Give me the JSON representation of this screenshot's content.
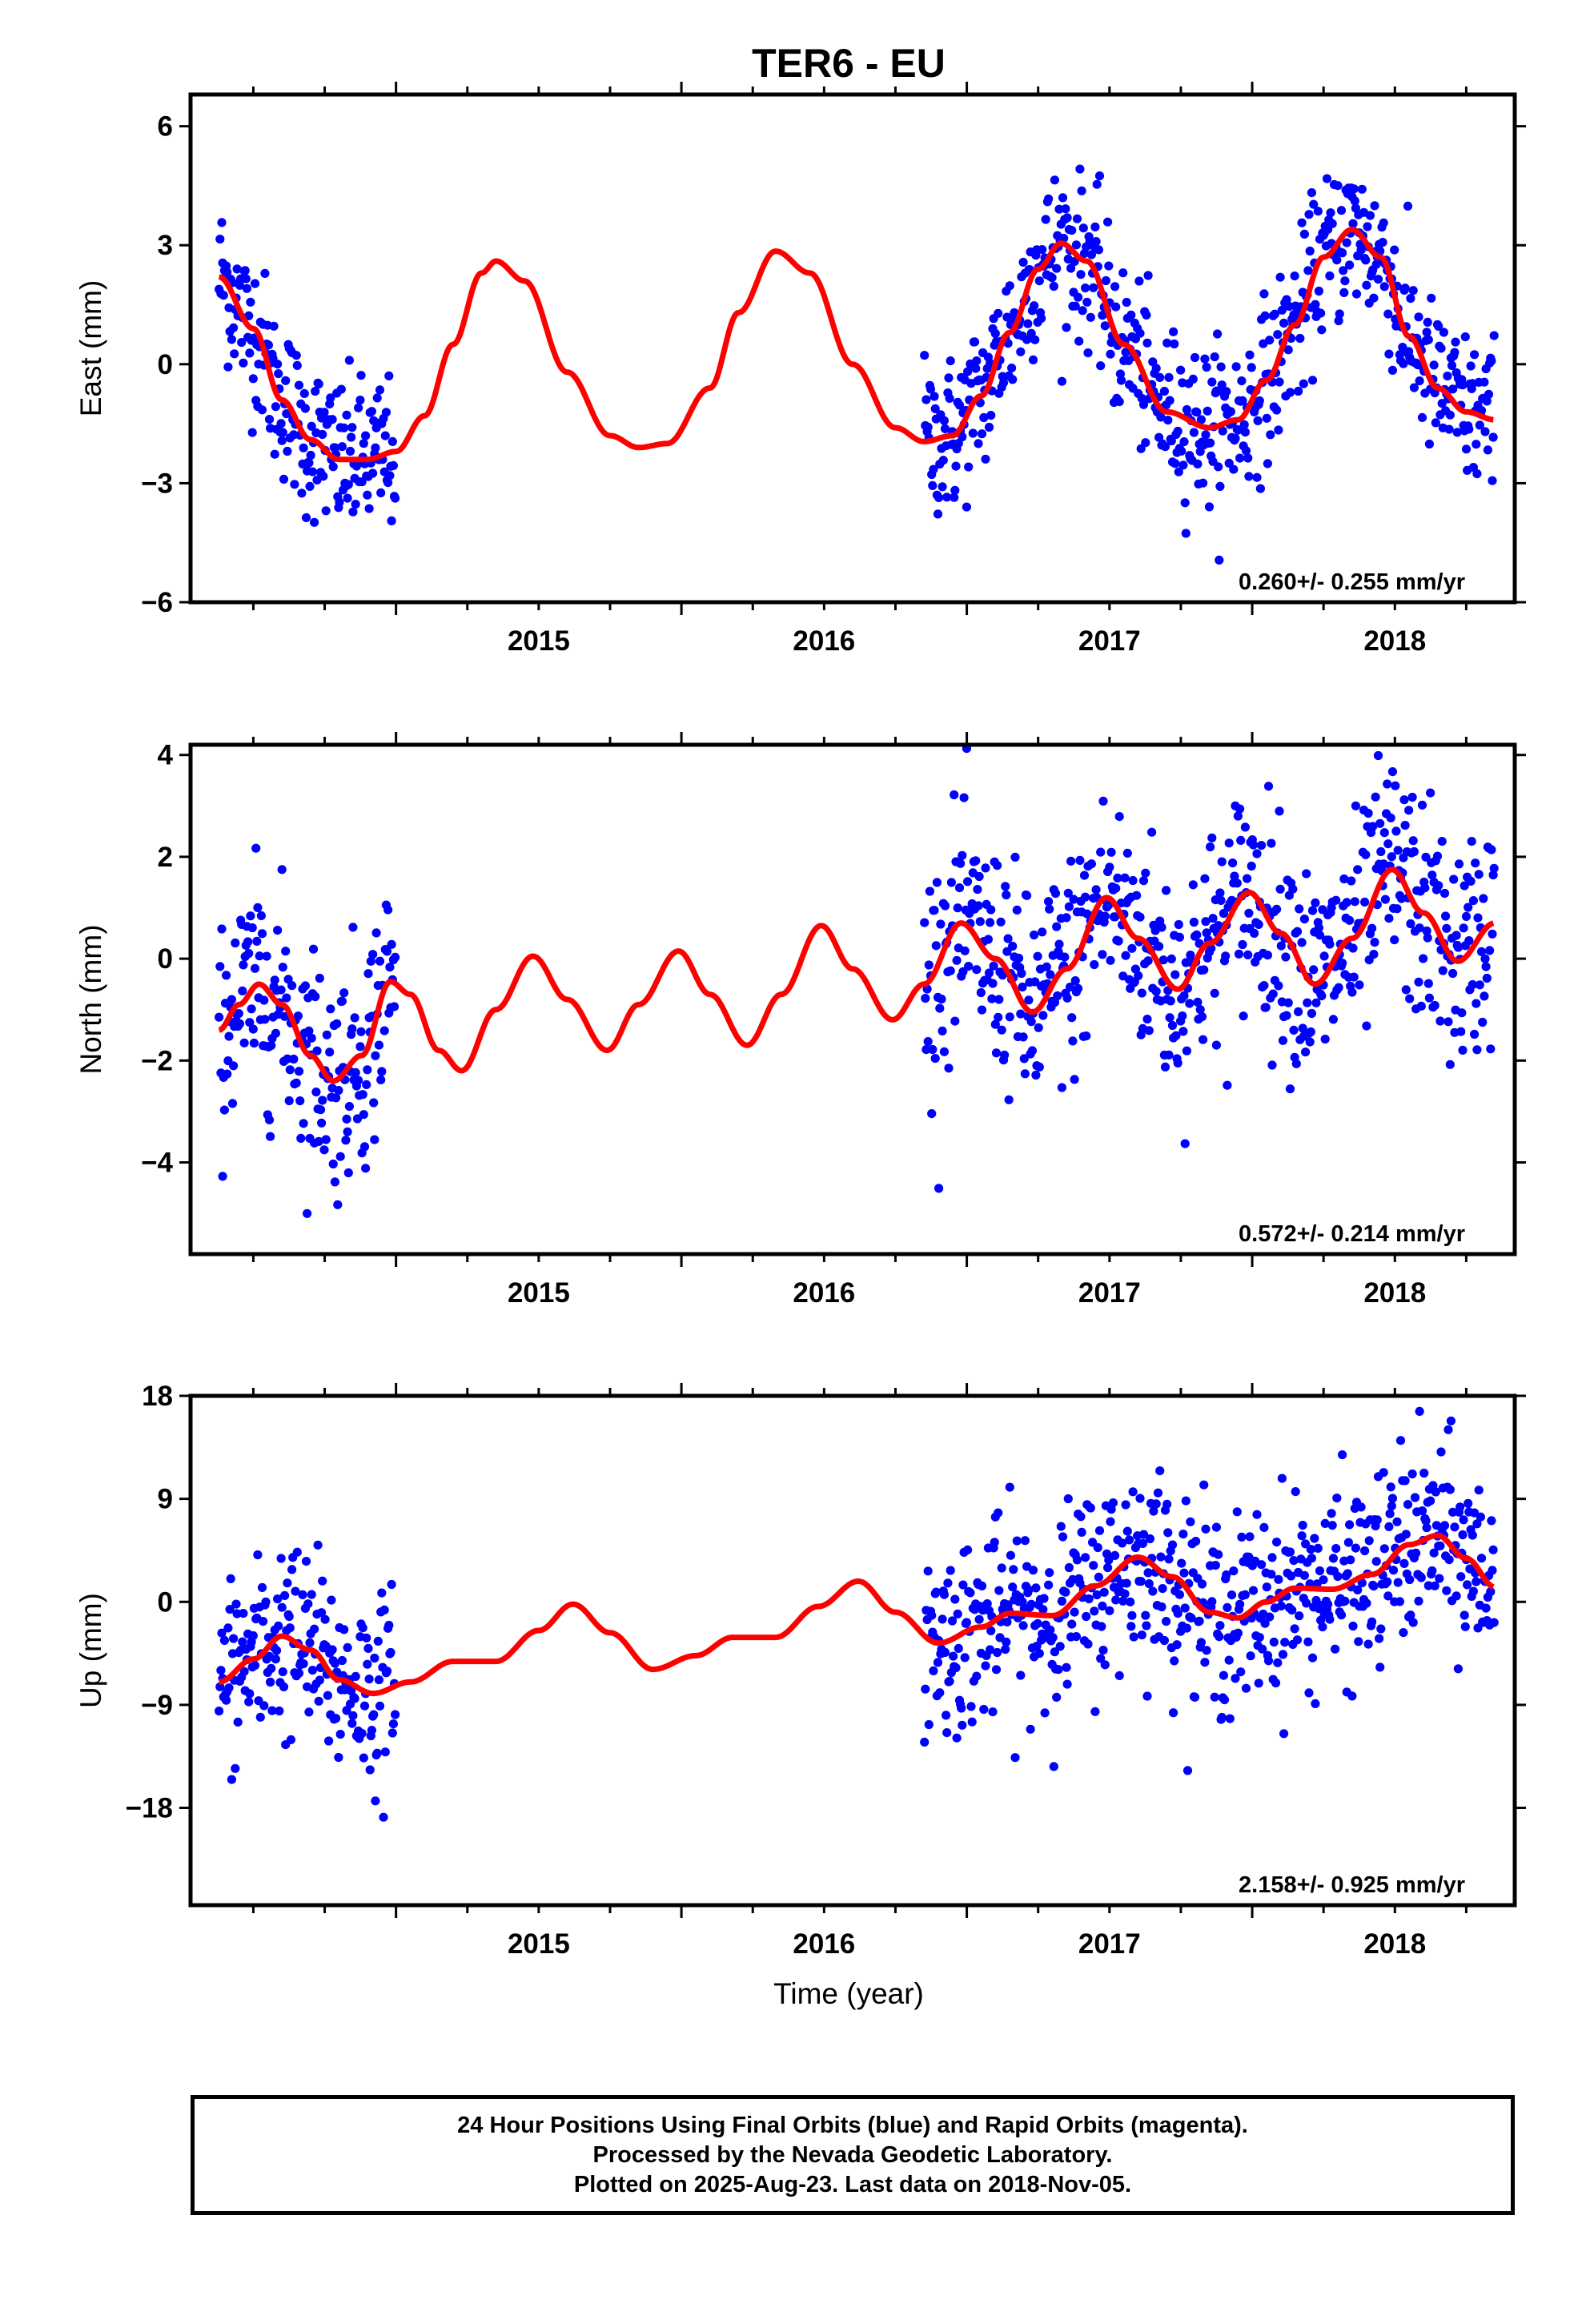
{
  "title": "TER6 - EU",
  "colors": {
    "points": "#0000ff",
    "fit": "#ff0000",
    "frame": "#000000"
  },
  "x_tick_labels": [
    "2015",
    "2016",
    "2017",
    "2018"
  ],
  "xlabel": "Time (year)",
  "chart_data": [
    {
      "type": "scatter",
      "ylabel": "East (mm)",
      "ylim": [
        -6,
        6.8
      ],
      "xlim": [
        2014.28,
        2018.92
      ],
      "yticks": [
        -6,
        -3,
        0,
        3,
        6
      ],
      "ytick_labels": [
        "−6",
        "−3",
        "0",
        "3",
        "6"
      ],
      "rate_label": "0.260+/- 0.255 mm/yr",
      "gaps": [
        [
          2015.0,
          2016.85
        ]
      ],
      "fit_samples": [
        [
          2014.38,
          2.2
        ],
        [
          2014.5,
          0.9
        ],
        [
          2014.6,
          -0.9
        ],
        [
          2014.7,
          -1.9
        ],
        [
          2014.8,
          -2.4
        ],
        [
          2014.9,
          -2.4
        ],
        [
          2015.0,
          -2.2
        ],
        [
          2015.1,
          -1.3
        ],
        [
          2015.2,
          0.5
        ],
        [
          2015.3,
          2.3
        ],
        [
          2015.35,
          2.6
        ],
        [
          2015.45,
          2.1
        ],
        [
          2015.6,
          -0.2
        ],
        [
          2015.75,
          -1.8
        ],
        [
          2015.85,
          -2.1
        ],
        [
          2015.95,
          -2.0
        ],
        [
          2016.1,
          -0.6
        ],
        [
          2016.2,
          1.3
        ],
        [
          2016.33,
          2.85
        ],
        [
          2016.45,
          2.3
        ],
        [
          2016.6,
          0.0
        ],
        [
          2016.75,
          -1.6
        ],
        [
          2016.85,
          -1.95
        ],
        [
          2016.95,
          -1.8
        ],
        [
          2017.05,
          -0.8
        ],
        [
          2017.15,
          0.8
        ],
        [
          2017.25,
          2.4
        ],
        [
          2017.33,
          3.05
        ],
        [
          2017.42,
          2.6
        ],
        [
          2017.55,
          0.5
        ],
        [
          2017.7,
          -1.2
        ],
        [
          2017.85,
          -1.6
        ],
        [
          2017.95,
          -1.4
        ],
        [
          2018.05,
          -0.4
        ],
        [
          2018.15,
          1.0
        ],
        [
          2018.25,
          2.7
        ],
        [
          2018.35,
          3.4
        ],
        [
          2018.45,
          2.7
        ],
        [
          2018.55,
          0.7
        ],
        [
          2018.65,
          -0.6
        ],
        [
          2018.75,
          -1.2
        ],
        [
          2018.85,
          -1.4
        ]
      ],
      "noise_sd": 1.0
    },
    {
      "type": "scatter",
      "ylabel": "North (mm)",
      "ylim": [
        -5.8,
        4.2
      ],
      "xlim": [
        2014.28,
        2018.92
      ],
      "yticks": [
        -4,
        -2,
        0,
        2,
        4
      ],
      "ytick_labels": [
        "−4",
        "−2",
        "0",
        "2",
        "4"
      ],
      "rate_label": "0.572+/- 0.214 mm/yr",
      "gaps": [
        [
          2015.0,
          2016.85
        ]
      ],
      "fit_samples": [
        [
          2014.38,
          -1.4
        ],
        [
          2014.45,
          -0.9
        ],
        [
          2014.52,
          -0.5
        ],
        [
          2014.6,
          -0.9
        ],
        [
          2014.7,
          -1.9
        ],
        [
          2014.78,
          -2.4
        ],
        [
          2014.88,
          -1.9
        ],
        [
          2014.98,
          -0.45
        ],
        [
          2015.05,
          -0.7
        ],
        [
          2015.15,
          -1.8
        ],
        [
          2015.23,
          -2.2
        ],
        [
          2015.35,
          -1.0
        ],
        [
          2015.48,
          0.05
        ],
        [
          2015.6,
          -0.8
        ],
        [
          2015.74,
          -1.8
        ],
        [
          2015.85,
          -0.9
        ],
        [
          2015.99,
          0.15
        ],
        [
          2016.1,
          -0.7
        ],
        [
          2016.23,
          -1.7
        ],
        [
          2016.35,
          -0.7
        ],
        [
          2016.49,
          0.65
        ],
        [
          2016.6,
          -0.2
        ],
        [
          2016.74,
          -1.2
        ],
        [
          2016.85,
          -0.5
        ],
        [
          2016.98,
          0.7
        ],
        [
          2017.1,
          0.0
        ],
        [
          2017.23,
          -1.05
        ],
        [
          2017.35,
          -0.2
        ],
        [
          2017.49,
          1.2
        ],
        [
          2017.6,
          0.4
        ],
        [
          2017.74,
          -0.6
        ],
        [
          2017.85,
          0.3
        ],
        [
          2017.99,
          1.3
        ],
        [
          2018.1,
          0.5
        ],
        [
          2018.22,
          -0.5
        ],
        [
          2018.35,
          0.4
        ],
        [
          2018.49,
          1.75
        ],
        [
          2018.6,
          0.9
        ],
        [
          2018.72,
          -0.05
        ],
        [
          2018.85,
          0.7
        ]
      ],
      "noise_sd": 1.1
    },
    {
      "type": "scatter",
      "ylabel": "Up (mm)",
      "ylim": [
        -26.5,
        18
      ],
      "xlim": [
        2014.28,
        2018.92
      ],
      "yticks": [
        -18,
        -9,
        0,
        9,
        18
      ],
      "ytick_labels": [
        "−18",
        "−9",
        "0",
        "9",
        "18"
      ],
      "rate_label": "2.158+/- 0.925 mm/yr",
      "gaps": [
        [
          2015.0,
          2016.85
        ]
      ],
      "fit_samples": [
        [
          2014.38,
          -7.0
        ],
        [
          2014.5,
          -5.0
        ],
        [
          2014.6,
          -3.0
        ],
        [
          2014.7,
          -4.2
        ],
        [
          2014.8,
          -6.8
        ],
        [
          2014.92,
          -8.0
        ],
        [
          2015.05,
          -7.0
        ],
        [
          2015.2,
          -5.2
        ],
        [
          2015.35,
          -5.2
        ],
        [
          2015.5,
          -2.5
        ],
        [
          2015.62,
          -0.2
        ],
        [
          2015.75,
          -2.7
        ],
        [
          2015.9,
          -5.9
        ],
        [
          2016.05,
          -4.7
        ],
        [
          2016.18,
          -3.1
        ],
        [
          2016.33,
          -3.1
        ],
        [
          2016.48,
          -0.4
        ],
        [
          2016.62,
          1.8
        ],
        [
          2016.75,
          -0.9
        ],
        [
          2016.9,
          -3.6
        ],
        [
          2017.05,
          -2.2
        ],
        [
          2017.15,
          -1.0
        ],
        [
          2017.3,
          -1.2
        ],
        [
          2017.45,
          1.4
        ],
        [
          2017.6,
          3.9
        ],
        [
          2017.72,
          2.2
        ],
        [
          2017.85,
          -0.9
        ],
        [
          2017.95,
          -1.4
        ],
        [
          2018.05,
          0.0
        ],
        [
          2018.15,
          1.2
        ],
        [
          2018.28,
          1.1
        ],
        [
          2018.42,
          2.4
        ],
        [
          2018.55,
          5.0
        ],
        [
          2018.65,
          5.8
        ],
        [
          2018.75,
          3.8
        ],
        [
          2018.85,
          1.3
        ]
      ],
      "noise_sd": 4.2
    }
  ],
  "footer": {
    "line1": "24 Hour Positions Using Final Orbits (blue) and Rapid Orbits (magenta).",
    "line2": "Processed by the Nevada Geodetic Laboratory.",
    "line3": "Plotted on 2025-Aug-23. Last data on 2018-Nov-05."
  }
}
